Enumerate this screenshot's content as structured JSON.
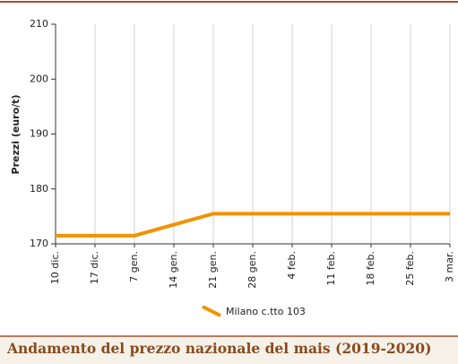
{
  "chart_data": {
    "type": "line",
    "title": "Andamento del prezzo nazionale del mais (2019-2020)",
    "y_label": "Prezzi (euro/t)",
    "categories": [
      "10 dic.",
      "17 dic.",
      "7 gen.",
      "14 gen.",
      "21 gen.",
      "28 gen.",
      "4 feb.",
      "11 feb.",
      "18 feb.",
      "25 feb.",
      "3 mar."
    ],
    "series": [
      {
        "name": "Milano  c.tto 103",
        "color": "#f39200",
        "values": [
          171.5,
          171.5,
          171.5,
          173.5,
          175.5,
          175.5,
          175.5,
          175.5,
          175.5,
          175.5,
          175.5
        ]
      }
    ],
    "ylim": [
      170,
      210
    ],
    "yticks": [
      170,
      180,
      190,
      200,
      210
    ],
    "grid": "x"
  }
}
